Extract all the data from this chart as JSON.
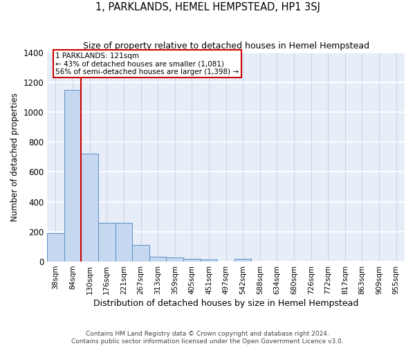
{
  "title": "1, PARKLANDS, HEMEL HEMPSTEAD, HP1 3SJ",
  "subtitle": "Size of property relative to detached houses in Hemel Hempstead",
  "xlabel": "Distribution of detached houses by size in Hemel Hempstead",
  "ylabel": "Number of detached properties",
  "footer1": "Contains HM Land Registry data © Crown copyright and database right 2024.",
  "footer2": "Contains public sector information licensed under the Open Government Licence v3.0.",
  "categories": [
    "38sqm",
    "84sqm",
    "130sqm",
    "176sqm",
    "221sqm",
    "267sqm",
    "313sqm",
    "359sqm",
    "405sqm",
    "451sqm",
    "497sqm",
    "542sqm",
    "588sqm",
    "634sqm",
    "680sqm",
    "726sqm",
    "772sqm",
    "817sqm",
    "863sqm",
    "909sqm",
    "955sqm"
  ],
  "values": [
    190,
    1150,
    720,
    260,
    260,
    110,
    35,
    28,
    20,
    15,
    0,
    20,
    0,
    0,
    0,
    0,
    0,
    0,
    0,
    0,
    0
  ],
  "bar_color": "#c5d8f0",
  "bar_edge_color": "#5b8ec4",
  "background_color": "#e8eef8",
  "grid_color": "#d0d8e8",
  "vline_x": 1.5,
  "vline_color": "#cc0000",
  "annotation_text": "1 PARKLANDS: 121sqm\n← 43% of detached houses are smaller (1,081)\n56% of semi-detached houses are larger (1,398) →",
  "annotation_box_color": "#cc0000",
  "ylim": [
    0,
    1400
  ],
  "yticks": [
    0,
    200,
    400,
    600,
    800,
    1000,
    1200,
    1400
  ]
}
